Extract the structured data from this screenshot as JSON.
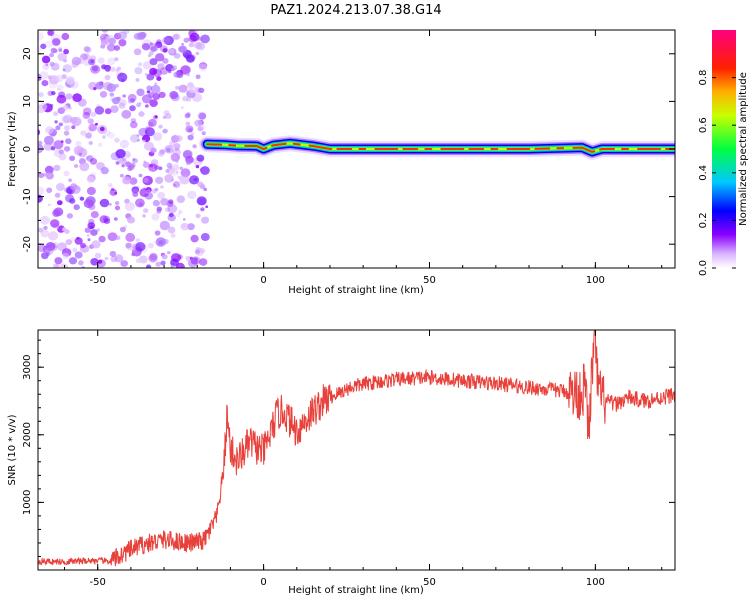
{
  "title": "PAZ1.2024.213.07.38.G14",
  "chart_data": [
    {
      "type": "heatmap",
      "xlabel": "Height of straight line (km)",
      "ylabel": "Frequency (Hz)",
      "xlim": [
        -68,
        124
      ],
      "ylim": [
        -25,
        25
      ],
      "xticks": [
        -50,
        0,
        50,
        100
      ],
      "yticks": [
        -20,
        -10,
        0,
        10,
        20
      ],
      "noise_region_x": [
        -68,
        -17
      ],
      "signal_start_x": -17,
      "signal_center_freq_hz": 0,
      "signal_center_line": [
        [
          -17,
          1.0
        ],
        [
          -12,
          0.9
        ],
        [
          -8,
          0.7
        ],
        [
          -2,
          0.6
        ],
        [
          0,
          0.0
        ],
        [
          3,
          0.8
        ],
        [
          8,
          1.2
        ],
        [
          15,
          0.6
        ],
        [
          20,
          0.0
        ],
        [
          40,
          0.0
        ],
        [
          60,
          0.0
        ],
        [
          80,
          0.0
        ],
        [
          96,
          0.3
        ],
        [
          99,
          -0.6
        ],
        [
          102,
          0.0
        ],
        [
          124,
          0.0
        ]
      ],
      "colorbar": {
        "label": "Normalized spectral amplitude",
        "range": [
          0,
          1
        ],
        "ticks": [
          "0.0",
          "0.2",
          "0.4",
          "0.6",
          "0.8"
        ],
        "tick_values": [
          0.0,
          0.2,
          0.4,
          0.6,
          0.8
        ],
        "colormap": [
          "#f5f5f5",
          "#8a00ff",
          "#0000ff",
          "#00c8ff",
          "#00ff00",
          "#ffff00",
          "#ff8000",
          "#ff0000",
          "#ff007f"
        ]
      }
    },
    {
      "type": "line",
      "xlabel": "Height of straight line (km)",
      "ylabel": "SNR (10 * v/v)",
      "xlim": [
        -68,
        124
      ],
      "ylim": [
        0,
        3550
      ],
      "xticks": [
        -50,
        0,
        50,
        100
      ],
      "yticks": [
        1000,
        2000,
        3000
      ],
      "series": [
        {
          "color": "#ff0000",
          "x": [
            -68,
            -60,
            -52,
            -46,
            -42,
            -38,
            -34,
            -30,
            -26,
            -22,
            -18,
            -16,
            -14,
            -12,
            -11,
            -10,
            -8,
            -6,
            -4,
            -2,
            0,
            2,
            4,
            6,
            8,
            10,
            14,
            18,
            22,
            26,
            30,
            34,
            40,
            50,
            60,
            70,
            80,
            90,
            95,
            97,
            98,
            99,
            100,
            101,
            103,
            106,
            110,
            115,
            120,
            124
          ],
          "y": [
            130,
            120,
            140,
            130,
            250,
            350,
            400,
            450,
            420,
            400,
            430,
            600,
            800,
            1500,
            2300,
            1800,
            1600,
            1750,
            1900,
            1800,
            1750,
            2000,
            2300,
            2350,
            2200,
            2050,
            2300,
            2500,
            2600,
            2700,
            2750,
            2780,
            2820,
            2850,
            2800,
            2760,
            2700,
            2650,
            2600,
            2700,
            2000,
            3000,
            3300,
            2600,
            2500,
            2450,
            2550,
            2500,
            2550,
            2600
          ]
        }
      ]
    }
  ]
}
